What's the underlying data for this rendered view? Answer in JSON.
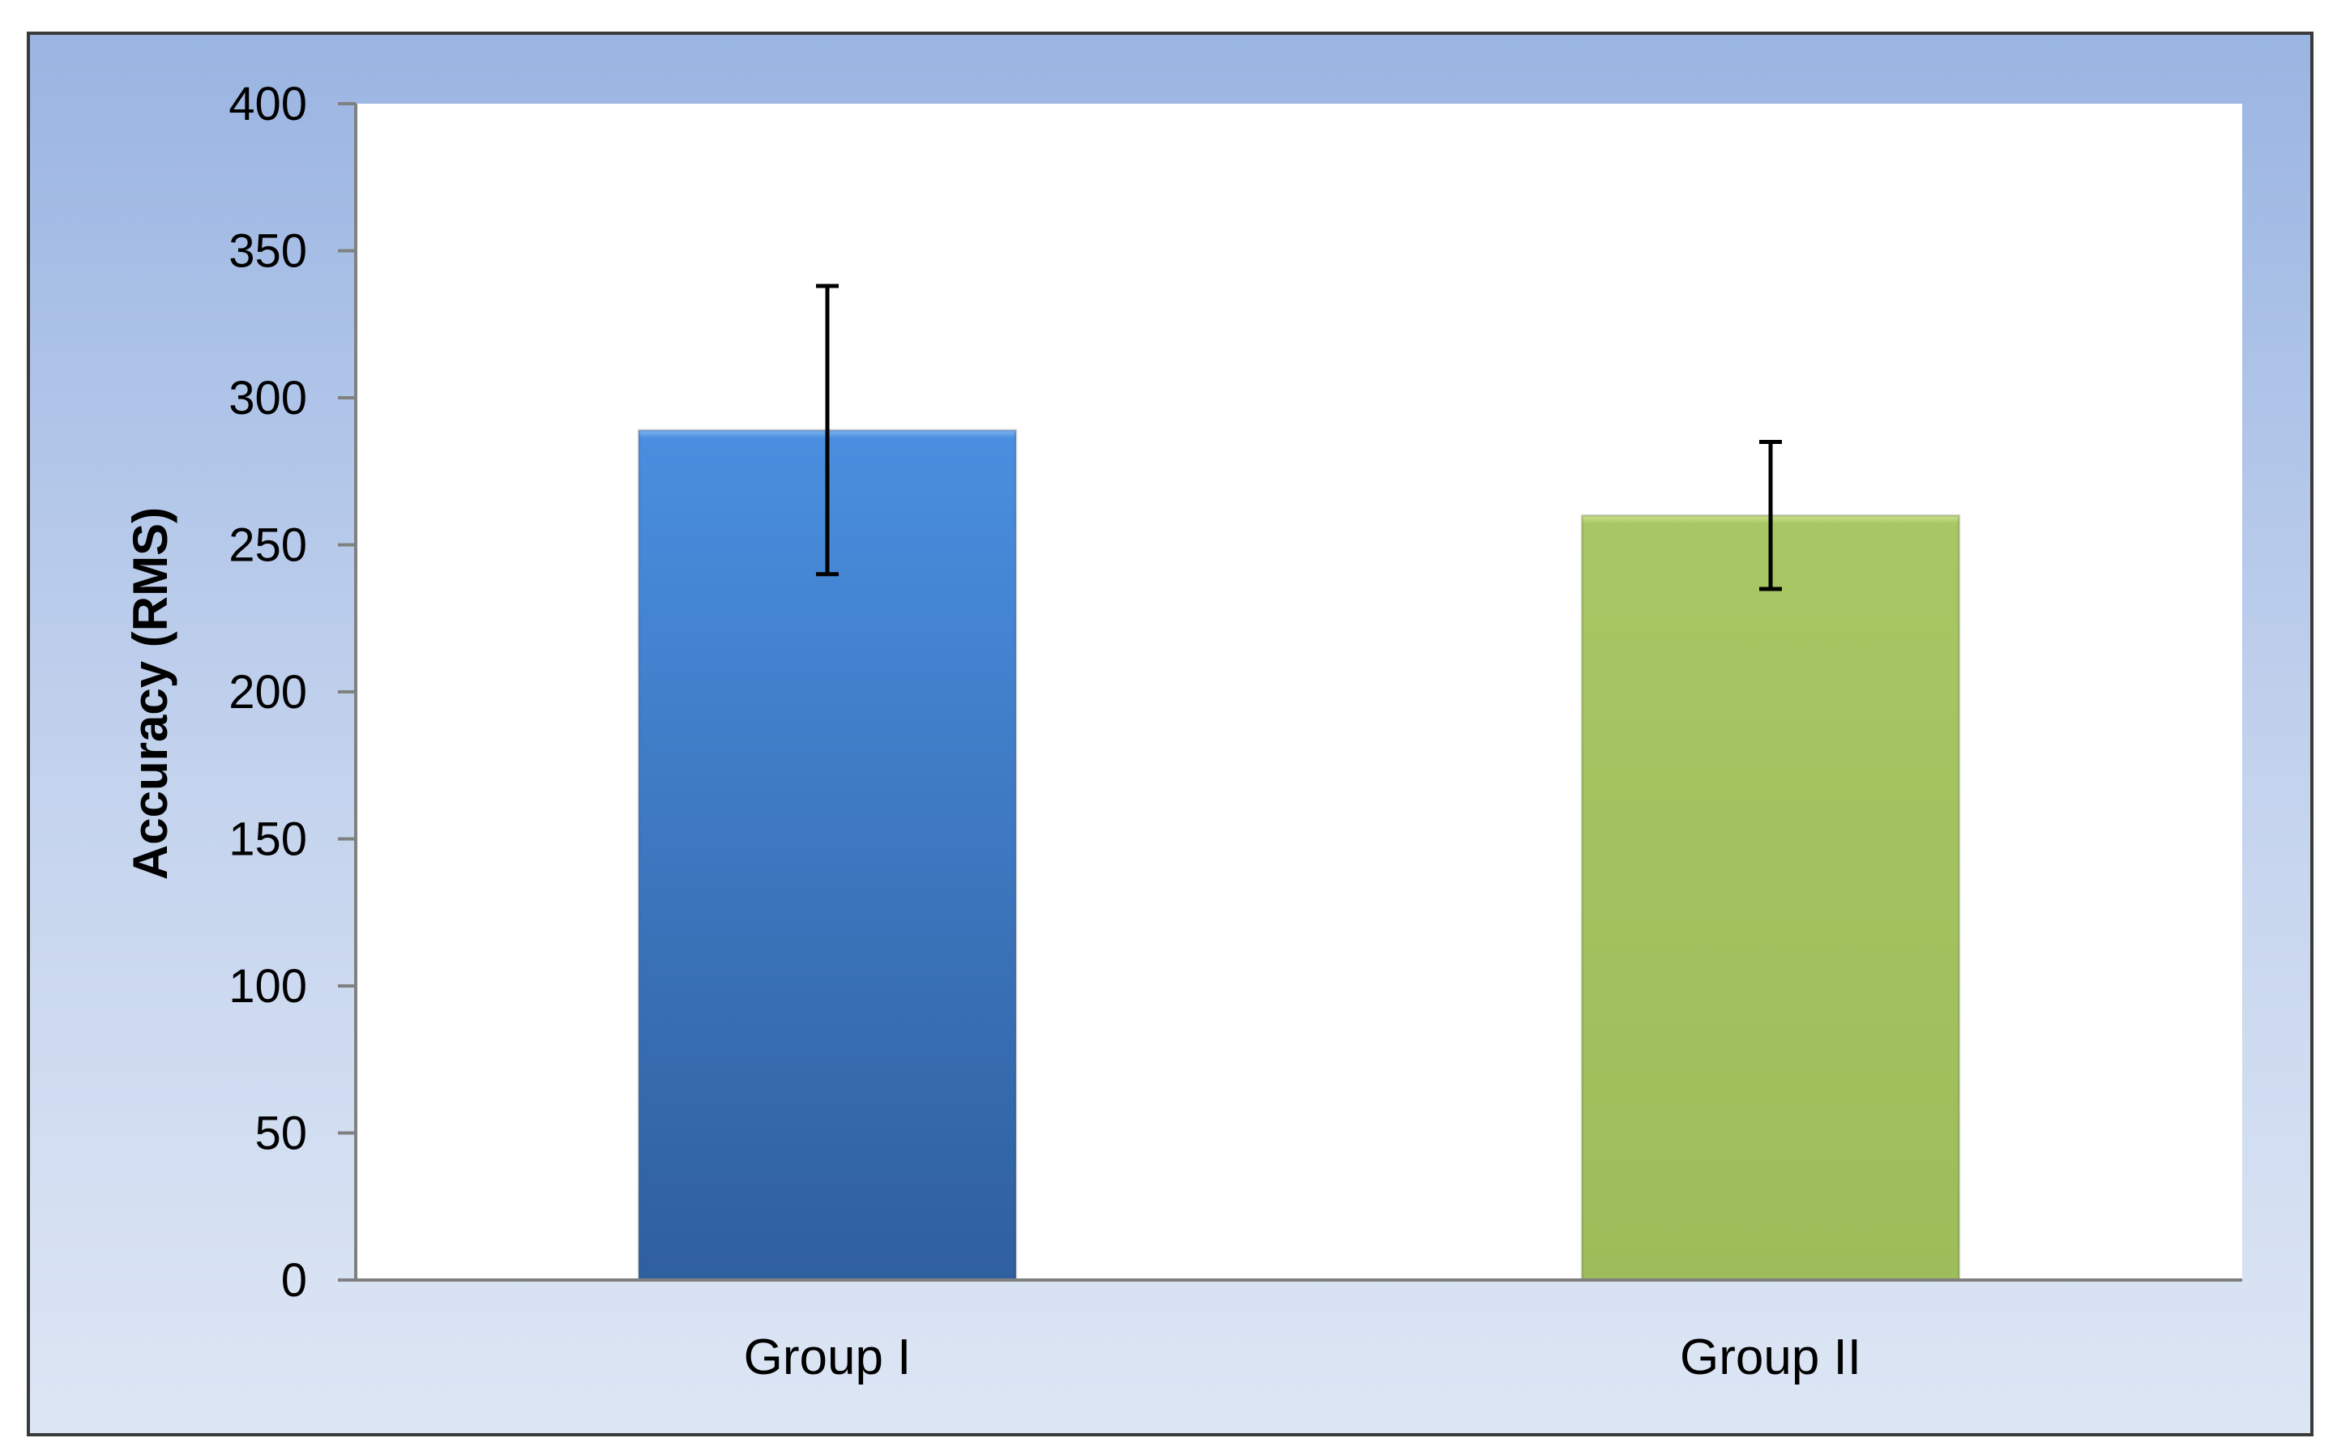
{
  "chart_data": {
    "type": "bar",
    "title": "",
    "xlabel": "",
    "ylabel": "Accuracy (RMS)",
    "ylim": [
      0,
      400
    ],
    "yticks": [
      0,
      50,
      100,
      150,
      200,
      250,
      300,
      350,
      400
    ],
    "grid": false,
    "legend": "none",
    "categories": [
      "Group I",
      "Group II"
    ],
    "values": [
      289,
      260
    ],
    "error_low": [
      240,
      235
    ],
    "error_high": [
      338,
      285
    ],
    "colors": [
      "#3d7cc9",
      "#a3c35f"
    ]
  }
}
